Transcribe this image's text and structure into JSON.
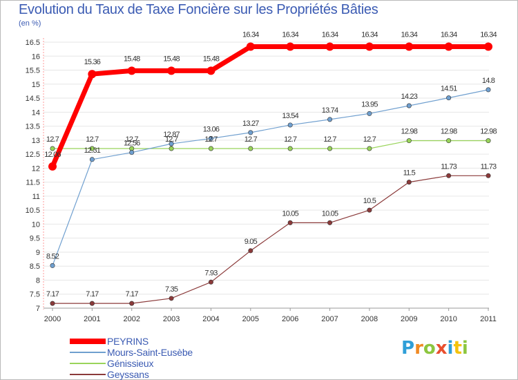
{
  "chart_data": {
    "type": "line",
    "title": "Evolution du Taux de Taxe Foncière sur les Propriétés Bâties",
    "subtitle": "(en %)",
    "x": [
      "2000",
      "2001",
      "2002",
      "2003",
      "2004",
      "2005",
      "2006",
      "2007",
      "2008",
      "2009",
      "2010",
      "2011"
    ],
    "ylim": [
      7,
      16.5
    ],
    "yticks": [
      "7",
      "7.5",
      "8",
      "8.5",
      "9",
      "9.5",
      "10",
      "10.5",
      "11",
      "11.5",
      "12",
      "12.5",
      "13",
      "13.5",
      "14",
      "14.5",
      "15",
      "15.5",
      "16",
      "16.5"
    ],
    "grid": "horizontal",
    "legend_position": "bottom-left",
    "series": [
      {
        "name": "PEYRINS",
        "color": "#ff0000",
        "values": [
          12.06,
          15.36,
          15.48,
          15.48,
          15.48,
          16.34,
          16.34,
          16.34,
          16.34,
          16.34,
          16.34,
          16.34
        ],
        "labels": [
          "12.06",
          "15.36",
          "15.48",
          "15.48",
          "15.48",
          "16.34",
          "16.34",
          "16.34",
          "16.34",
          "16.34",
          "16.34",
          "16.34"
        ]
      },
      {
        "name": "Mours-Saint-Eusèbe",
        "color": "#6f9fcf",
        "values": [
          8.52,
          12.31,
          12.56,
          12.87,
          13.06,
          13.27,
          13.54,
          13.74,
          13.95,
          14.23,
          14.51,
          14.8
        ],
        "labels": [
          "8.52",
          "12.31",
          "12.56",
          "12.87",
          "13.06",
          "13.27",
          "13.54",
          "13.74",
          "13.95",
          "14.23",
          "14.51",
          "14.8"
        ]
      },
      {
        "name": "Génissieux",
        "color": "#99d45a",
        "values": [
          12.7,
          12.7,
          12.7,
          12.7,
          12.7,
          12.7,
          12.7,
          12.7,
          12.7,
          12.98,
          12.98,
          12.98
        ],
        "labels": [
          "12.7",
          "12.7",
          "12.7",
          "12.7",
          "12.7",
          "12.7",
          "12.7",
          "12.7",
          "12.7",
          "12.98",
          "12.98",
          "12.98"
        ]
      },
      {
        "name": "Geyssans",
        "color": "#8b3a3a",
        "values": [
          7.17,
          7.17,
          7.17,
          7.35,
          7.93,
          9.05,
          10.05,
          10.05,
          10.5,
          11.5,
          11.73,
          11.73
        ],
        "labels": [
          "7.17",
          "7.17",
          "7.17",
          "7.35",
          "7.93",
          "9.05",
          "10.05",
          "10.05",
          "10.5",
          "11.5",
          "11.73",
          "11.73"
        ]
      }
    ]
  },
  "logo": {
    "text": "Proxiti",
    "letters": [
      "P",
      "r",
      "o",
      "x",
      "i",
      "t",
      "i"
    ],
    "letter_colors": [
      "#2f9fd8",
      "#f08a24",
      "#8dc63f",
      "#e94f2e",
      "#2f9fd8",
      "#f4c20d",
      "#8dc63f"
    ]
  }
}
